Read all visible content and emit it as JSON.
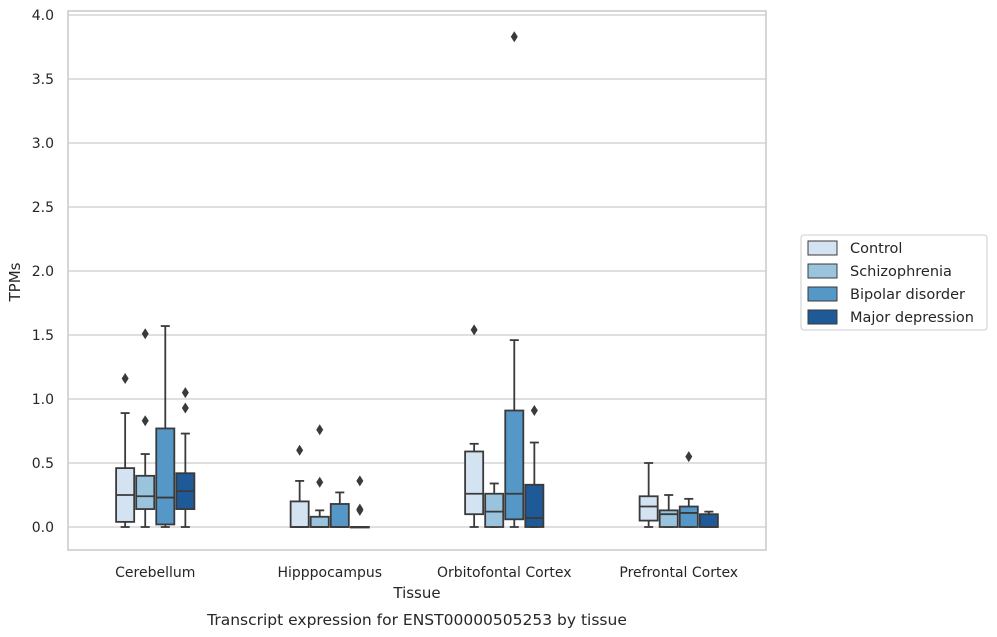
{
  "caption": "Transcript expression for ENST00000505253 by tissue",
  "chart_data": {
    "type": "boxplot",
    "title": "",
    "xlabel": "Tissue",
    "ylabel": "TPMs",
    "categories": [
      "Cerebellum",
      "Hipppocampus",
      "Orbitofontal Cortex",
      "Prefrontal Cortex"
    ],
    "ylim": [
      -0.18,
      4.02
    ],
    "yticks": [
      "0.0",
      "0.5",
      "1.0",
      "1.5",
      "2.0",
      "2.5",
      "3.0",
      "3.5",
      "4.0"
    ],
    "grid": true,
    "legend_position": "right",
    "series": [
      {
        "name": "Control",
        "color": "#d4e3f2",
        "boxes": [
          {
            "whisker_low": 0.0,
            "q1": 0.04,
            "median": 0.25,
            "q3": 0.46,
            "whisker_high": 0.89,
            "outliers": [
              1.16
            ]
          },
          {
            "whisker_low": 0.0,
            "q1": 0.0,
            "median": 0.0,
            "q3": 0.2,
            "whisker_high": 0.36,
            "outliers": [
              0.6
            ]
          },
          {
            "whisker_low": 0.0,
            "q1": 0.1,
            "median": 0.26,
            "q3": 0.59,
            "whisker_high": 0.65,
            "outliers": [
              1.54
            ]
          },
          {
            "whisker_low": 0.0,
            "q1": 0.05,
            "median": 0.16,
            "q3": 0.24,
            "whisker_high": 0.5,
            "outliers": []
          }
        ]
      },
      {
        "name": "Schizophrenia",
        "color": "#9ac3de",
        "boxes": [
          {
            "whisker_low": 0.0,
            "q1": 0.14,
            "median": 0.24,
            "q3": 0.4,
            "whisker_high": 0.57,
            "outliers": [
              0.83,
              1.51
            ]
          },
          {
            "whisker_low": 0.0,
            "q1": 0.0,
            "median": 0.0,
            "q3": 0.08,
            "whisker_high": 0.13,
            "outliers": [
              0.35,
              0.76
            ]
          },
          {
            "whisker_low": 0.0,
            "q1": 0.0,
            "median": 0.12,
            "q3": 0.26,
            "whisker_high": 0.34,
            "outliers": []
          },
          {
            "whisker_low": 0.0,
            "q1": 0.0,
            "median": 0.1,
            "q3": 0.13,
            "whisker_high": 0.25,
            "outliers": []
          }
        ]
      },
      {
        "name": "Bipolar disorder",
        "color": "#5597c7",
        "boxes": [
          {
            "whisker_low": 0.0,
            "q1": 0.02,
            "median": 0.23,
            "q3": 0.77,
            "whisker_high": 1.57,
            "outliers": []
          },
          {
            "whisker_low": 0.0,
            "q1": 0.0,
            "median": 0.0,
            "q3": 0.18,
            "whisker_high": 0.27,
            "outliers": []
          },
          {
            "whisker_low": 0.0,
            "q1": 0.06,
            "median": 0.26,
            "q3": 0.91,
            "whisker_high": 1.46,
            "outliers": [
              3.83
            ]
          },
          {
            "whisker_low": 0.0,
            "q1": 0.0,
            "median": 0.11,
            "q3": 0.16,
            "whisker_high": 0.22,
            "outliers": [
              0.55
            ]
          }
        ]
      },
      {
        "name": "Major depression",
        "color": "#1f5a98",
        "boxes": [
          {
            "whisker_low": 0.0,
            "q1": 0.14,
            "median": 0.28,
            "q3": 0.42,
            "whisker_high": 0.73,
            "outliers": [
              0.93,
              1.05
            ]
          },
          {
            "whisker_low": 0.0,
            "q1": 0.0,
            "median": 0.0,
            "q3": 0.0,
            "whisker_high": 0.0,
            "outliers": [
              0.13,
              0.14,
              0.36
            ]
          },
          {
            "whisker_low": 0.0,
            "q1": 0.0,
            "median": 0.07,
            "q3": 0.33,
            "whisker_high": 0.66,
            "outliers": [
              0.91
            ]
          },
          {
            "whisker_low": 0.0,
            "q1": 0.0,
            "median": 0.0,
            "q3": 0.1,
            "whisker_high": 0.12,
            "outliers": []
          }
        ]
      }
    ]
  }
}
